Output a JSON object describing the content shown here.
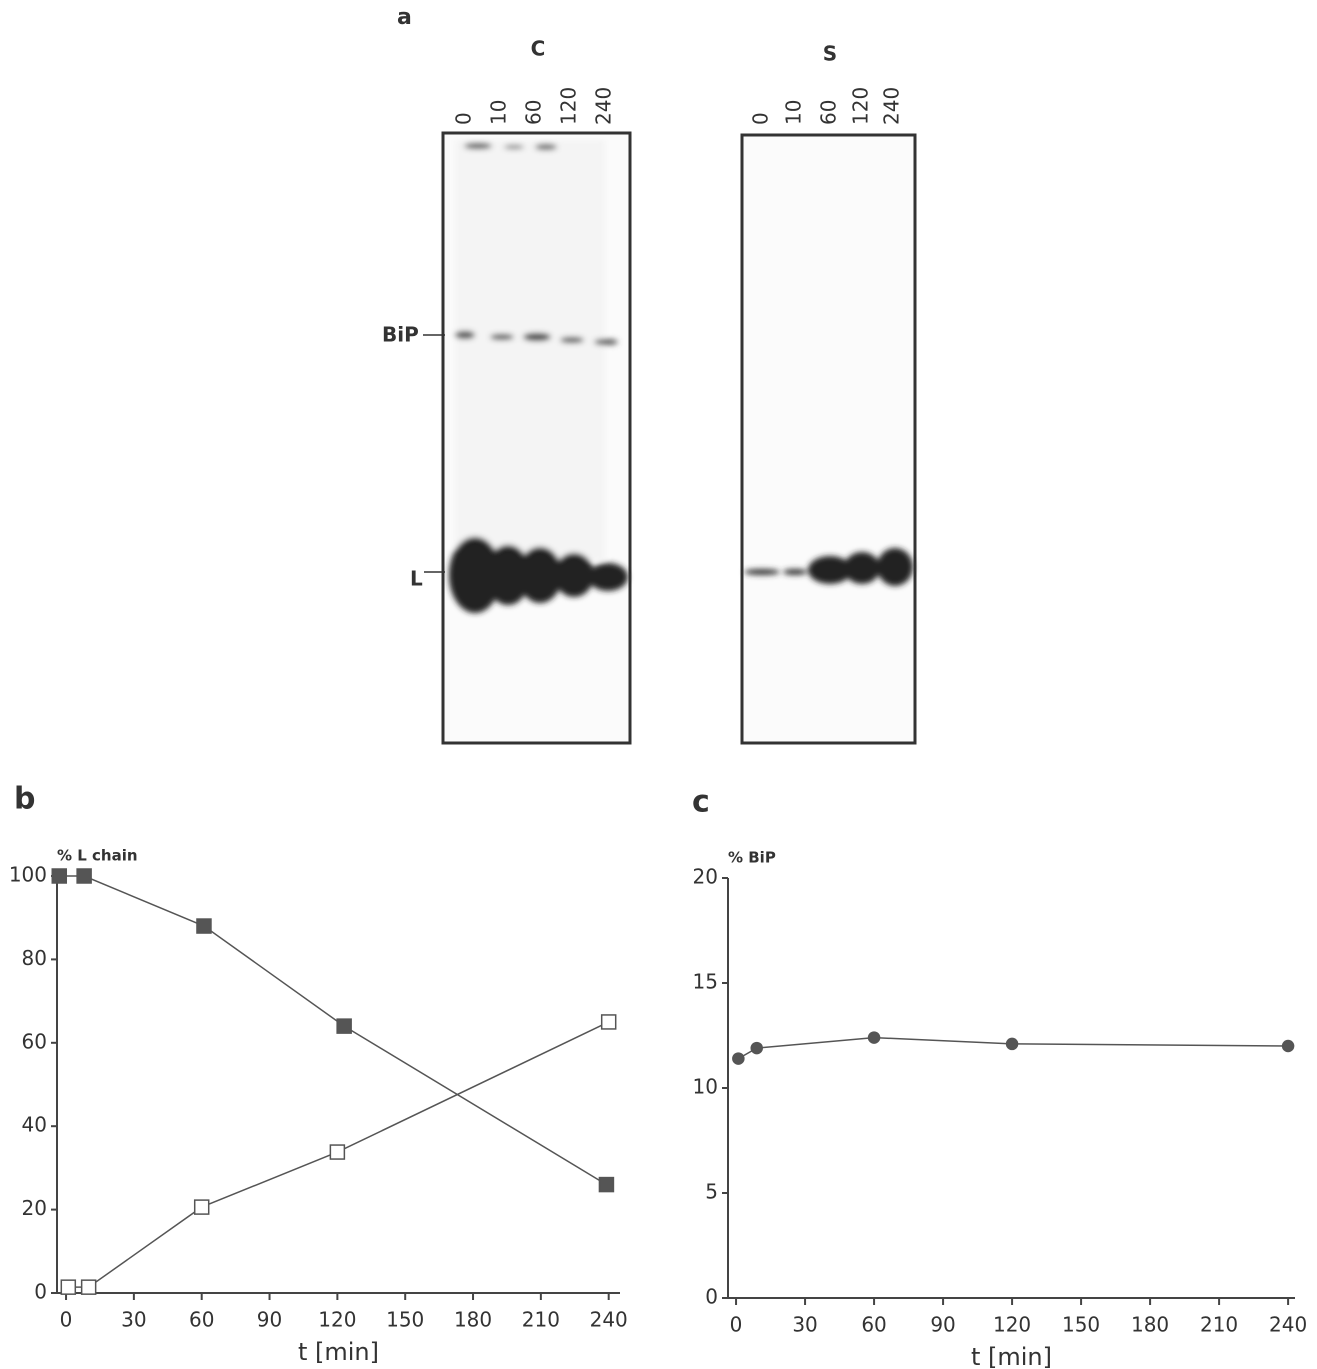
{
  "figure_a": {
    "panel": "a",
    "gels": [
      {
        "name": "C",
        "lanes": [
          "0",
          "10",
          "60",
          "120",
          "240"
        ]
      },
      {
        "name": "S",
        "lanes": [
          "0",
          "10",
          "60",
          "120",
          "240"
        ]
      }
    ],
    "bands": [
      "BiP",
      "L"
    ]
  },
  "chart_data": [
    {
      "type": "line",
      "panel": "b",
      "y_label": "% L chain",
      "x_label": "t [min]",
      "xlim": [
        -4,
        245
      ],
      "ylim": [
        0,
        100
      ],
      "xticks": [
        0,
        30,
        60,
        90,
        120,
        150,
        180,
        210,
        240
      ],
      "yticks": [
        0,
        20,
        40,
        60,
        80,
        100
      ],
      "series": [
        {
          "marker": "square",
          "filled": true,
          "color": "#555",
          "x": [
            -3,
            8,
            61,
            123,
            239
          ],
          "values": [
            100,
            100,
            88,
            64,
            26
          ]
        },
        {
          "marker": "square",
          "filled": false,
          "color": "#555",
          "x": [
            1,
            10,
            60,
            120,
            240
          ],
          "values": [
            1.4,
            1.4,
            20.6,
            33.8,
            65
          ]
        }
      ]
    },
    {
      "type": "line",
      "panel": "c",
      "y_label": "% BiP",
      "x_label": "t [min]",
      "xlim": [
        -3.5,
        243
      ],
      "ylim": [
        0,
        20
      ],
      "xticks": [
        0,
        30,
        60,
        90,
        120,
        150,
        180,
        210,
        240
      ],
      "yticks": [
        0,
        5,
        10,
        15,
        20
      ],
      "series": [
        {
          "marker": "circle",
          "filled": true,
          "color": "#555",
          "x": [
            1,
            9,
            60,
            120,
            240
          ],
          "values": [
            11.4,
            11.9,
            12.4,
            12.1,
            12.0
          ]
        }
      ]
    }
  ]
}
